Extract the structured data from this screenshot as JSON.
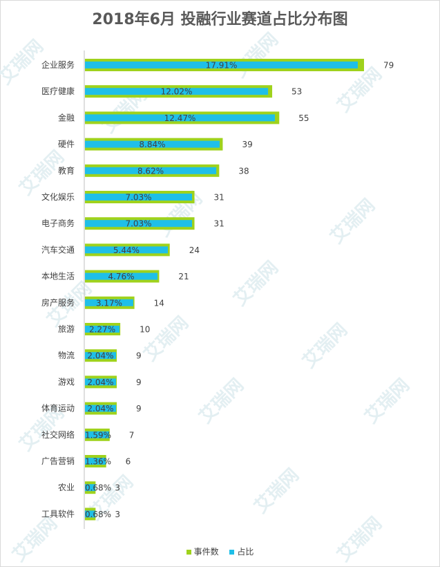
{
  "title": "2018年6月 投融行业赛道占比分布图",
  "watermark": "艾瑞网",
  "colors": {
    "count": "#9fd21c",
    "share": "#1fbfe8",
    "text": "#404040",
    "axis": "#bfbfbf"
  },
  "chart_data": {
    "type": "bar",
    "orientation": "horizontal",
    "categories": [
      "企业服务",
      "医疗健康",
      "金融",
      "硬件",
      "教育",
      "文化娱乐",
      "电子商务",
      "汽车交通",
      "本地生活",
      "房产服务",
      "旅游",
      "物流",
      "游戏",
      "体育运动",
      "社交网络",
      "广告营销",
      "农业",
      "工具软件"
    ],
    "series": [
      {
        "name": "事件数",
        "values": [
          79,
          53,
          55,
          39,
          38,
          31,
          31,
          24,
          21,
          14,
          10,
          9,
          9,
          9,
          7,
          6,
          3,
          3
        ]
      },
      {
        "name": "占比",
        "values": [
          17.91,
          12.02,
          12.47,
          8.84,
          8.62,
          7.03,
          7.03,
          5.44,
          4.76,
          3.17,
          2.27,
          2.04,
          2.04,
          2.04,
          1.59,
          1.36,
          0.68,
          0.68
        ]
      }
    ],
    "value_labels": [
      "79",
      "53",
      "55",
      "39",
      "38",
      "31",
      "31",
      "24",
      "21",
      "14",
      "10",
      "9",
      "9",
      "9",
      "7",
      "6",
      "3",
      "3"
    ],
    "percent_labels": [
      "17.91%",
      "12.02%",
      "12.47%",
      "8.84%",
      "8.62%",
      "7.03%",
      "7.03%",
      "5.44%",
      "4.76%",
      "3.17%",
      "2.27%",
      "2.04%",
      "2.04%",
      "2.04%",
      "1.59%",
      "1.36%",
      "0.68%",
      "0.68%"
    ],
    "legend_position": "bottom",
    "grid": false
  }
}
